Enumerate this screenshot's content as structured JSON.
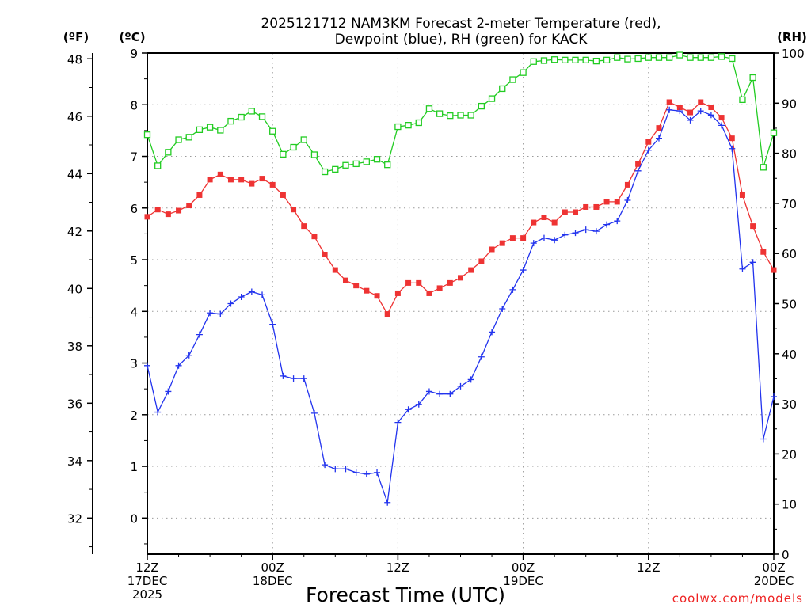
{
  "chart_data": {
    "type": "line",
    "title_line1": "2025121712 NAM3KM Forecast 2-meter Temperature (red),",
    "title_line2": "Dewpoint (blue), RH (green) for KACK",
    "xlabel": "Forecast Time (UTC)",
    "credit": "coolwx.com/models",
    "unit_labels": {
      "fahrenheit": "(ºF)",
      "celsius": "(ºC)",
      "rh": "(RH)"
    },
    "x_range_hours": [
      0,
      60
    ],
    "celsius_axis": {
      "range": [
        -0.7,
        9.0
      ],
      "ticks": [
        "0",
        "1",
        "2",
        "3",
        "4",
        "5",
        "6",
        "7",
        "8",
        "9"
      ]
    },
    "fahrenheit_axis": {
      "range": [
        30.74,
        48.2
      ],
      "ticks": [
        "32",
        "34",
        "36",
        "38",
        "40",
        "42",
        "44",
        "46",
        "48"
      ]
    },
    "rh_axis": {
      "range": [
        0,
        100
      ],
      "ticks": [
        "0",
        "10",
        "20",
        "30",
        "40",
        "50",
        "60",
        "70",
        "80",
        "90",
        "100"
      ]
    },
    "x_ticks": [
      {
        "hour": 0,
        "lines": [
          "12Z",
          "17DEC",
          "2025"
        ]
      },
      {
        "hour": 12,
        "lines": [
          "00Z",
          "18DEC"
        ]
      },
      {
        "hour": 24,
        "lines": [
          "12Z"
        ]
      },
      {
        "hour": 36,
        "lines": [
          "00Z",
          "19DEC"
        ]
      },
      {
        "hour": 48,
        "lines": [
          "12Z"
        ]
      },
      {
        "hour": 60,
        "lines": [
          "00Z",
          "20DEC"
        ]
      }
    ],
    "series": [
      {
        "name": "2-meter Temperature (°C)",
        "color": "#ee3333",
        "marker": "filled-square",
        "axis": "celsius",
        "values": [
          5.83,
          5.97,
          5.88,
          5.95,
          6.05,
          6.25,
          6.55,
          6.65,
          6.55,
          6.55,
          6.47,
          6.57,
          6.45,
          6.25,
          5.97,
          5.65,
          5.45,
          5.1,
          4.8,
          4.6,
          4.5,
          4.4,
          4.3,
          3.95,
          4.35,
          4.55,
          4.55,
          4.35,
          4.45,
          4.55,
          4.65,
          4.8,
          4.97,
          5.2,
          5.32,
          5.42,
          5.42,
          5.72,
          5.82,
          5.72,
          5.92,
          5.92,
          6.02,
          6.02,
          6.12,
          6.12,
          6.45,
          6.85,
          7.28,
          7.55,
          8.05,
          7.95,
          7.85,
          8.05,
          7.95,
          7.75,
          7.35,
          6.25,
          5.65,
          5.15,
          4.8
        ]
      },
      {
        "name": "Dewpoint (°C)",
        "color": "#2233ee",
        "marker": "plus",
        "axis": "celsius",
        "values": [
          2.95,
          2.05,
          2.45,
          2.95,
          3.15,
          3.55,
          3.97,
          3.95,
          4.15,
          4.28,
          4.38,
          4.32,
          3.75,
          2.75,
          2.7,
          2.7,
          2.03,
          1.03,
          0.95,
          0.95,
          0.88,
          0.85,
          0.88,
          0.3,
          1.85,
          2.1,
          2.2,
          2.45,
          2.4,
          2.4,
          2.55,
          2.68,
          3.12,
          3.6,
          4.05,
          4.42,
          4.8,
          5.32,
          5.42,
          5.38,
          5.48,
          5.52,
          5.58,
          5.55,
          5.68,
          5.75,
          6.15,
          6.72,
          7.12,
          7.35,
          7.9,
          7.88,
          7.7,
          7.88,
          7.8,
          7.6,
          7.15,
          4.82,
          4.95,
          1.53,
          2.35
        ]
      },
      {
        "name": "RH (%)",
        "color": "#22cc22",
        "marker": "open-square",
        "axis": "rh",
        "values": [
          83.7,
          77.5,
          80.2,
          82.7,
          83.2,
          84.7,
          85.2,
          84.6,
          86.4,
          87.2,
          88.4,
          87.3,
          84.4,
          79.8,
          81.2,
          82.7,
          79.7,
          76.3,
          76.8,
          77.6,
          77.9,
          78.3,
          78.8,
          77.7,
          85.3,
          85.6,
          86.1,
          88.9,
          87.9,
          87.5,
          87.6,
          87.6,
          89.4,
          90.9,
          92.9,
          94.7,
          96.1,
          98.3,
          98.5,
          98.7,
          98.6,
          98.6,
          98.6,
          98.4,
          98.6,
          99.1,
          98.8,
          98.9,
          99.1,
          99.1,
          99.1,
          99.6,
          99.1,
          99.1,
          99.1,
          99.3,
          98.9,
          90.7,
          95.1,
          77.2,
          84.1
        ]
      }
    ]
  }
}
